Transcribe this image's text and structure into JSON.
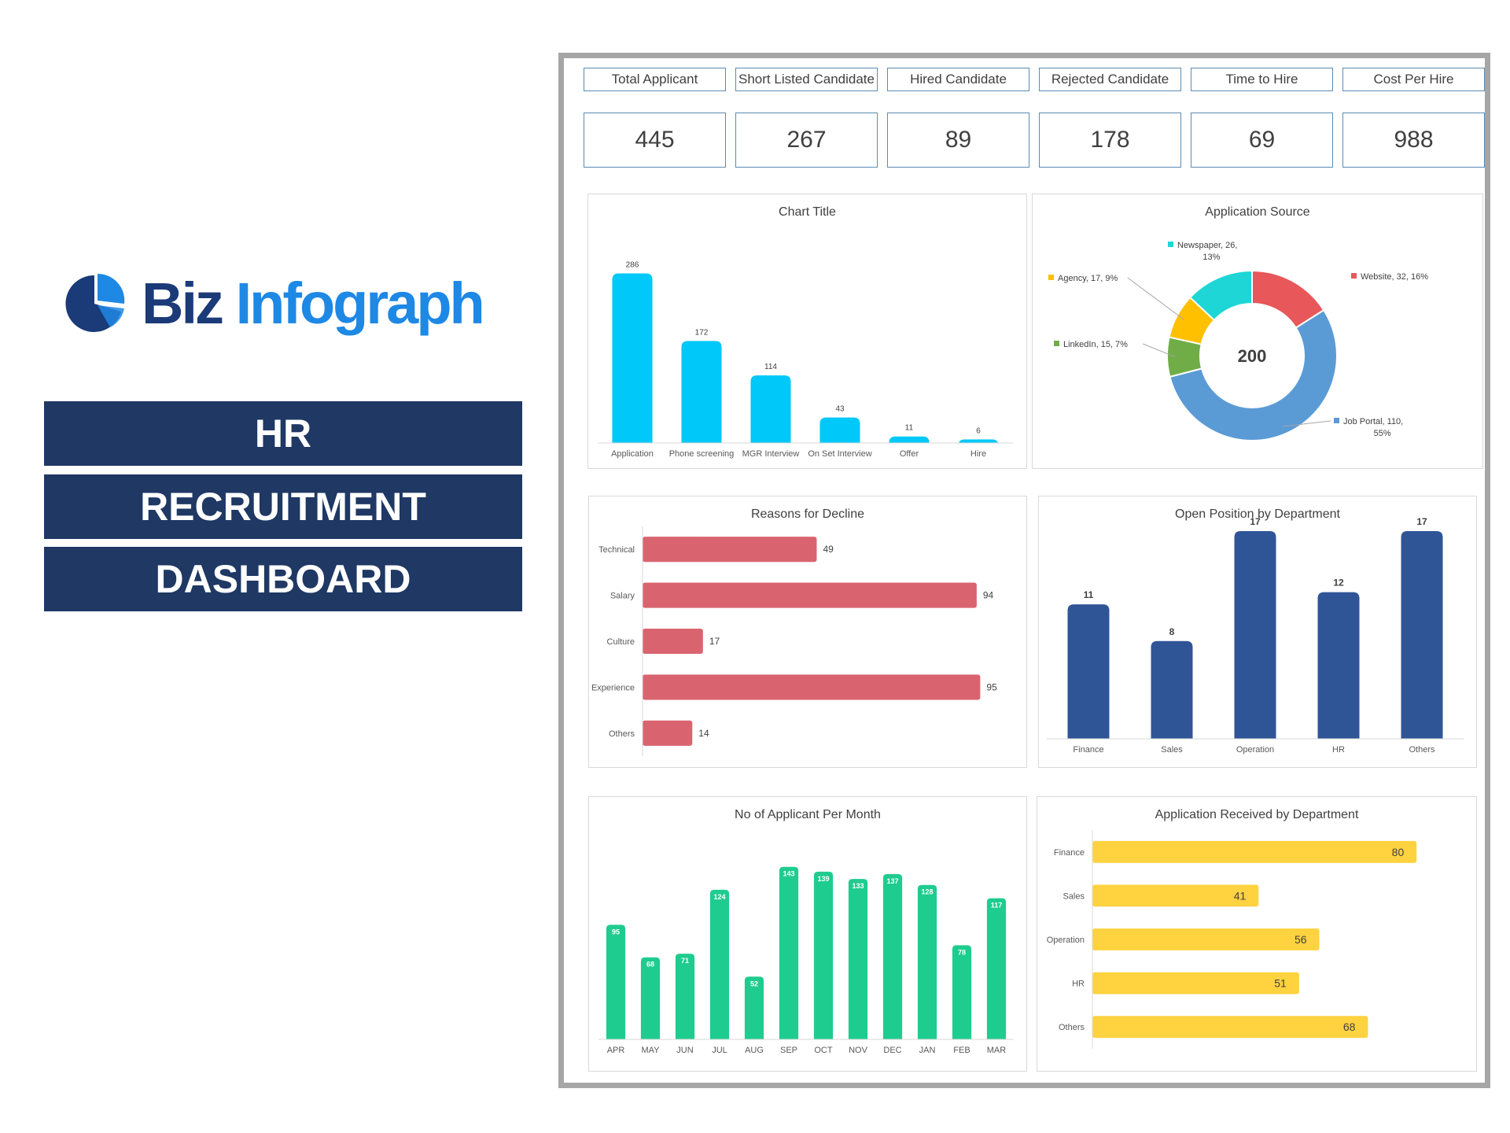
{
  "brand": {
    "name_part1": "Biz",
    "name_part2": "Infograph",
    "colors": {
      "dark": "#1b3a78",
      "light": "#1e88e5"
    }
  },
  "title_lines": [
    "HR",
    "RECRUITMENT",
    "DASHBOARD"
  ],
  "kpis": [
    {
      "label": "Total Applicant",
      "value": "445"
    },
    {
      "label": "Short Listed Candidate",
      "value": "267"
    },
    {
      "label": "Hired Candidate",
      "value": "89"
    },
    {
      "label": "Rejected Candidate",
      "value": "178"
    },
    {
      "label": "Time to Hire",
      "value": "69"
    },
    {
      "label": "Cost Per Hire",
      "value": "988"
    }
  ],
  "chart_data": [
    {
      "id": "funnel",
      "type": "bar",
      "title": "Chart Title",
      "color": "#00c8f8",
      "categories": [
        "Application",
        "Phone screening",
        "MGR Interview",
        "On Set Interview",
        "Offer",
        "Hire"
      ],
      "values": [
        286,
        172,
        114,
        43,
        11,
        6
      ],
      "ylim": [
        0,
        300
      ],
      "grid": false,
      "legend": "none"
    },
    {
      "id": "source",
      "type": "pie",
      "variant": "donut",
      "title": "Application Source",
      "center_label": "200",
      "slices": [
        {
          "name": "Website",
          "value": 32,
          "pct": "16%",
          "color": "#e8575a"
        },
        {
          "name": "Job Portal",
          "value": 110,
          "pct": "55%",
          "color": "#5b9bd5"
        },
        {
          "name": "LinkedIn",
          "value": 15,
          "pct": "7%",
          "color": "#70ad47"
        },
        {
          "name": "Agency",
          "value": 17,
          "pct": "9%",
          "color": "#ffc000"
        },
        {
          "name": "Newspaper",
          "value": 26,
          "pct": "13%",
          "color": "#1ed6d6"
        }
      ],
      "legend": "labels"
    },
    {
      "id": "decline",
      "type": "bar",
      "orientation": "horizontal",
      "title": "Reasons for Decline",
      "color": "#d9646f",
      "categories": [
        "Technical",
        "Salary",
        "Culture",
        "Experience",
        "Others"
      ],
      "values": [
        49,
        94,
        17,
        95,
        14
      ],
      "xlim": [
        0,
        100
      ],
      "grid": false
    },
    {
      "id": "open_positions",
      "type": "bar",
      "title": "Open Position by Department",
      "color": "#2f5597",
      "categories": [
        "Finance",
        "Sales",
        "Operation",
        "HR",
        "Others"
      ],
      "values": [
        11,
        8,
        17,
        12,
        17
      ],
      "ylim": [
        0,
        17
      ],
      "grid": false
    },
    {
      "id": "per_month",
      "type": "bar",
      "title": "No of Applicant Per Month",
      "color": "#1fcc8f",
      "categories": [
        "APR",
        "MAY",
        "JUN",
        "JUL",
        "AUG",
        "SEP",
        "OCT",
        "NOV",
        "DEC",
        "JAN",
        "FEB",
        "MAR"
      ],
      "values": [
        95,
        68,
        71,
        124,
        52,
        143,
        139,
        133,
        137,
        128,
        78,
        117
      ],
      "ylim": [
        0,
        150
      ],
      "grid": false
    },
    {
      "id": "received_by_dept",
      "type": "bar",
      "orientation": "horizontal",
      "title": "Application Received by Department",
      "color": "#ffd23f",
      "categories": [
        "Finance",
        "Sales",
        "Operation",
        "HR",
        "Others"
      ],
      "values": [
        80,
        41,
        56,
        51,
        68
      ],
      "xlim": [
        0,
        85
      ],
      "grid": false
    }
  ]
}
